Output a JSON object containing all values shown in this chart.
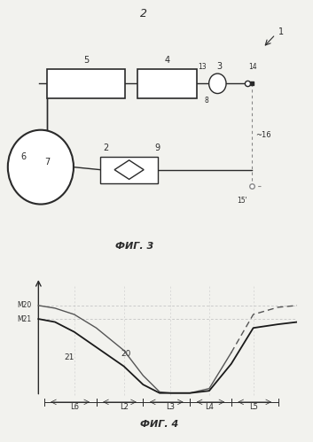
{
  "page_number": "2",
  "fig3_label": "ФИГ. 3",
  "fig4_label": "ФИГ. 4",
  "bg_color": "#f2f2ee",
  "line_color": "#2a2a2a",
  "dashed_color": "#888888",
  "fig4": {
    "M20": 0.8,
    "M21": 0.68,
    "L_labels": [
      "L6",
      "L2",
      "L3",
      "L4",
      "L5"
    ]
  }
}
